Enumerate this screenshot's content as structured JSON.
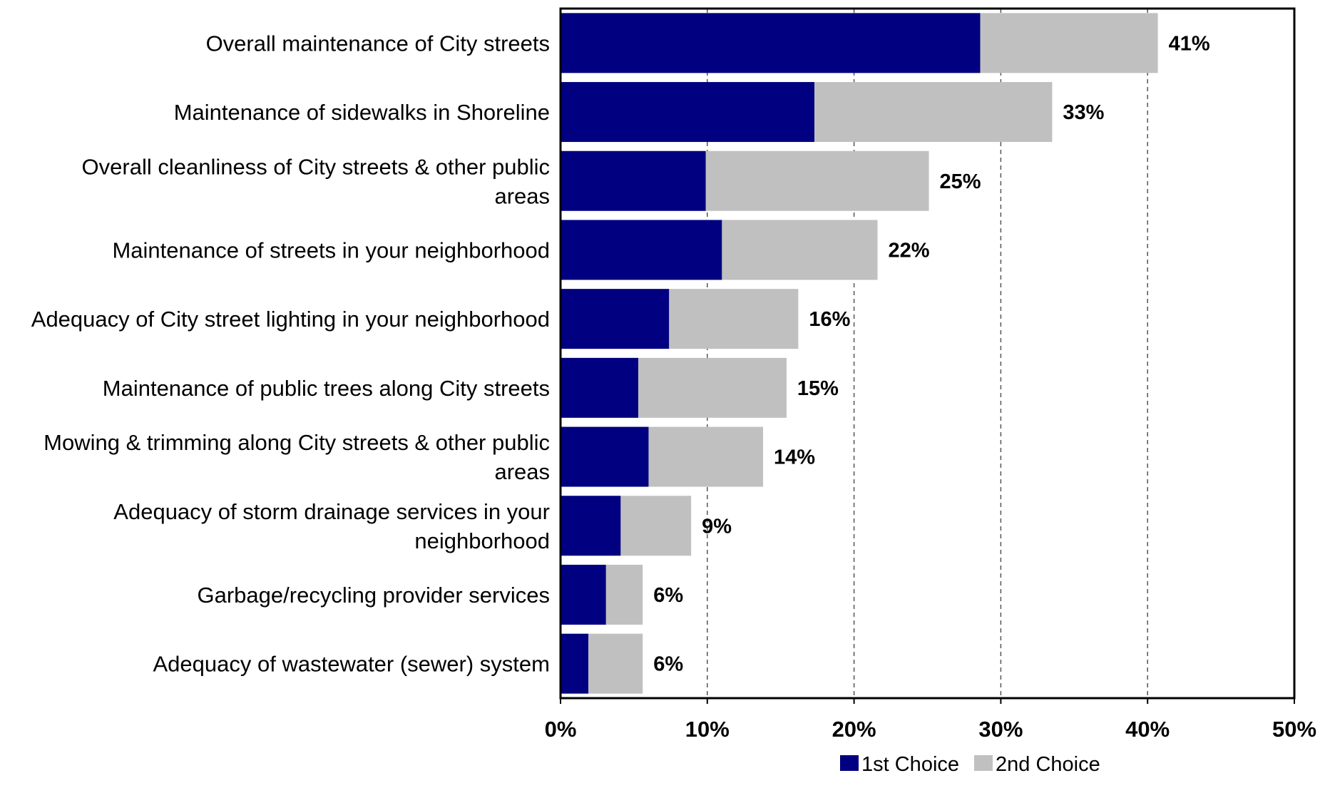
{
  "chart_data": {
    "type": "bar",
    "orientation": "horizontal",
    "stacked": true,
    "categories": [
      [
        "Overall maintenance of City streets"
      ],
      [
        "Maintenance of sidewalks in Shoreline"
      ],
      [
        "Overall cleanliness of City streets & other public",
        "areas"
      ],
      [
        "Maintenance of streets in your neighborhood"
      ],
      [
        "Adequacy of City street lighting in your neighborhood"
      ],
      [
        "Maintenance of public trees along City streets"
      ],
      [
        "Mowing & trimming along City streets & other public",
        "areas"
      ],
      [
        "Adequacy of storm drainage services in your",
        "neighborhood"
      ],
      [
        "Garbage/recycling provider services"
      ],
      [
        "Adequacy of wastewater (sewer) system"
      ]
    ],
    "series": [
      {
        "name": "1st Choice",
        "color": "#000080",
        "values": [
          28.6,
          17.3,
          9.9,
          11.0,
          7.4,
          5.3,
          6.0,
          4.1,
          3.1,
          1.9
        ]
      },
      {
        "name": "2nd Choice",
        "color": "#c0c0c0",
        "values": [
          12.1,
          16.2,
          15.2,
          10.6,
          8.8,
          10.1,
          7.8,
          4.8,
          2.5,
          3.7
        ]
      }
    ],
    "totals_labels": [
      "41%",
      "33%",
      "25%",
      "22%",
      "16%",
      "15%",
      "14%",
      "9%",
      "6%",
      "6%"
    ],
    "xlim": [
      0,
      50
    ],
    "xticks": [
      0,
      10,
      20,
      30,
      40,
      50
    ],
    "xtick_labels": [
      "0%",
      "10%",
      "20%",
      "30%",
      "40%",
      "50%"
    ],
    "grid": "vertical dashed",
    "legend_position": "bottom",
    "title": "",
    "xlabel": "",
    "ylabel": ""
  }
}
